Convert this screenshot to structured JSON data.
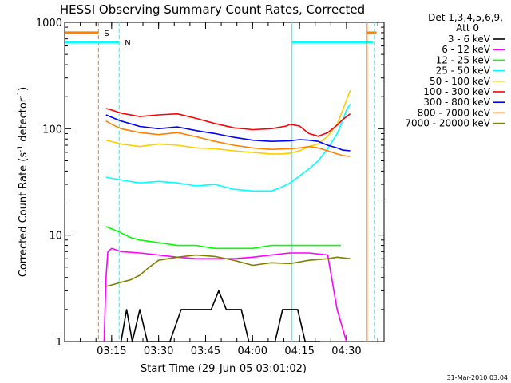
{
  "chart_data": {
    "type": "line",
    "title": "HESSI Observing Summary Count Rates, Corrected",
    "xlabel": "Start Time (29-Jun-05 03:01:02)",
    "ylabel": "Corrected Count Rate (s",
    "ylabel_sup1": "-1",
    "ylabel_mid": " detector",
    "ylabel_sup2": "-1",
    "ylabel_end": ")",
    "xlim": [
      3.0,
      4.7
    ],
    "ylim": [
      1,
      1000
    ],
    "y_scale": "log",
    "x_ticks": [
      {
        "v": 3.25,
        "label": "03:15"
      },
      {
        "v": 3.5,
        "label": "03:30"
      },
      {
        "v": 3.75,
        "label": "03:45"
      },
      {
        "v": 4.0,
        "label": "04:00"
      },
      {
        "v": 4.25,
        "label": "04:15"
      },
      {
        "v": 4.5,
        "label": "04:30"
      }
    ],
    "y_ticks": [
      {
        "v": 1,
        "label": "1"
      },
      {
        "v": 10,
        "label": "10"
      },
      {
        "v": 100,
        "label": "100"
      },
      {
        "v": 1000,
        "label": "1000"
      }
    ],
    "legend_header": [
      "Det 1,3,4,5,6,9,",
      "Att 0"
    ],
    "legend_position": "right",
    "footer_date": "31-Mar-2010 03:04",
    "flags": [
      {
        "label": "S",
        "color": "#ff8000",
        "dash": "5,3",
        "line_x": 3.18,
        "flag_from": 3.0,
        "flag_to": 3.18,
        "level": 800,
        "label_x": 3.21
      },
      {
        "label": "N",
        "color": "#00ffff",
        "dash": "5,3",
        "line_x": 3.29,
        "flag_from": 3.0,
        "flag_to": 3.29,
        "level": 650,
        "label_x": 3.32
      }
    ],
    "flag_ends": [
      {
        "color": "#00ffff",
        "line_x": 4.21,
        "flag_from": 4.21,
        "flag_to": 4.64,
        "level": 650
      },
      {
        "color": "#ff8000",
        "line_x": 4.61,
        "flag_from": 4.61,
        "flag_to": 4.66,
        "level": 800
      },
      {
        "color": "#00ffff",
        "line_x": 4.65,
        "flag_from": 4.65,
        "flag_to": 4.65,
        "level": 650,
        "dash": "5,3"
      }
    ],
    "series": [
      {
        "name": "3 - 6 keV",
        "color": "#000000",
        "x": [
          3.3,
          3.33,
          3.36,
          3.4,
          3.44,
          3.5,
          3.56,
          3.62,
          3.66,
          3.7,
          3.74,
          3.78,
          3.82,
          3.86,
          3.9,
          3.94,
          3.98,
          4.05,
          4.12,
          4.16,
          4.2,
          4.24,
          4.28,
          4.32,
          4.36
        ],
        "y": [
          1,
          2,
          1,
          2,
          1,
          1,
          1,
          2,
          2,
          2,
          2,
          2,
          3,
          2,
          2,
          2,
          1,
          1,
          1,
          2,
          2,
          2,
          1,
          1,
          1
        ]
      },
      {
        "name": "6 - 12 keV",
        "color": "#ff00ff",
        "x": [
          3.21,
          3.22,
          3.23,
          3.25,
          3.3,
          3.4,
          3.5,
          3.6,
          3.7,
          3.8,
          3.9,
          4.0,
          4.1,
          4.2,
          4.3,
          4.4,
          4.45,
          4.5
        ],
        "y": [
          1,
          4,
          7,
          7.5,
          7,
          6.8,
          6.5,
          6.2,
          6.0,
          6.0,
          6.0,
          6.2,
          6.5,
          6.8,
          6.8,
          6.5,
          2,
          1
        ]
      },
      {
        "name": "12 - 25 keV",
        "color": "#00ff00",
        "x": [
          3.22,
          3.25,
          3.3,
          3.35,
          3.4,
          3.5,
          3.6,
          3.7,
          3.8,
          3.9,
          4.0,
          4.1,
          4.2,
          4.3,
          4.4,
          4.47
        ],
        "y": [
          12,
          11.5,
          10.5,
          9.5,
          9,
          8.5,
          8,
          8,
          7.5,
          7.5,
          7.5,
          8,
          8,
          8,
          8,
          8
        ]
      },
      {
        "name": "25 - 50 keV",
        "color": "#00ffff",
        "x": [
          3.22,
          3.3,
          3.4,
          3.5,
          3.6,
          3.7,
          3.8,
          3.9,
          4.0,
          4.1,
          4.15,
          4.2,
          4.25,
          4.3,
          4.35,
          4.4,
          4.45,
          4.48,
          4.5,
          4.52
        ],
        "y": [
          35,
          33,
          31,
          32,
          31,
          29,
          30,
          27,
          26,
          26,
          28,
          31,
          36,
          42,
          50,
          65,
          90,
          120,
          150,
          170
        ]
      },
      {
        "name": "50 - 100 keV",
        "color": "#ffcc00",
        "x": [
          3.22,
          3.3,
          3.4,
          3.5,
          3.6,
          3.7,
          3.8,
          3.9,
          4.0,
          4.1,
          4.15,
          4.2,
          4.25,
          4.3,
          4.35,
          4.4,
          4.45,
          4.48,
          4.52
        ],
        "y": [
          78,
          72,
          68,
          72,
          70,
          66,
          65,
          62,
          60,
          58,
          58,
          59,
          62,
          68,
          72,
          85,
          110,
          150,
          230
        ]
      },
      {
        "name": "100 - 300 keV",
        "color": "#ff0000",
        "x": [
          3.22,
          3.25,
          3.3,
          3.4,
          3.5,
          3.6,
          3.7,
          3.8,
          3.9,
          4.0,
          4.1,
          4.18,
          4.2,
          4.25,
          4.3,
          4.35,
          4.4,
          4.45,
          4.48,
          4.52
        ],
        "y": [
          155,
          150,
          140,
          130,
          135,
          138,
          125,
          112,
          102,
          98,
          100,
          106,
          110,
          106,
          90,
          85,
          92,
          108,
          122,
          138
        ]
      },
      {
        "name": "300 - 800 keV",
        "color": "#0000ff",
        "x": [
          3.22,
          3.25,
          3.3,
          3.4,
          3.5,
          3.6,
          3.7,
          3.8,
          3.9,
          4.0,
          4.1,
          4.2,
          4.25,
          4.3,
          4.35,
          4.4,
          4.45,
          4.48,
          4.52
        ],
        "y": [
          135,
          128,
          118,
          105,
          100,
          104,
          96,
          90,
          83,
          78,
          76,
          77,
          79,
          78,
          76,
          70,
          66,
          63,
          62
        ]
      },
      {
        "name": "800 - 7000 keV",
        "color": "#ff8000",
        "x": [
          3.22,
          3.25,
          3.3,
          3.4,
          3.5,
          3.6,
          3.7,
          3.8,
          3.9,
          4.0,
          4.1,
          4.2,
          4.25,
          4.3,
          4.35,
          4.4,
          4.45,
          4.48,
          4.52
        ],
        "y": [
          118,
          110,
          100,
          92,
          88,
          92,
          84,
          76,
          70,
          66,
          64,
          65,
          66,
          68,
          66,
          62,
          58,
          56,
          55
        ]
      },
      {
        "name": "7000 - 20000 keV",
        "color": "#808000",
        "x": [
          3.22,
          3.25,
          3.3,
          3.35,
          3.4,
          3.45,
          3.5,
          3.6,
          3.7,
          3.8,
          3.9,
          4.0,
          4.1,
          4.2,
          4.3,
          4.4,
          4.45,
          4.52
        ],
        "y": [
          3.3,
          3.4,
          3.6,
          3.8,
          4.2,
          5.0,
          5.8,
          6.2,
          6.5,
          6.3,
          5.8,
          5.2,
          5.5,
          5.4,
          5.8,
          6.0,
          6.2,
          6.0
        ]
      }
    ]
  }
}
